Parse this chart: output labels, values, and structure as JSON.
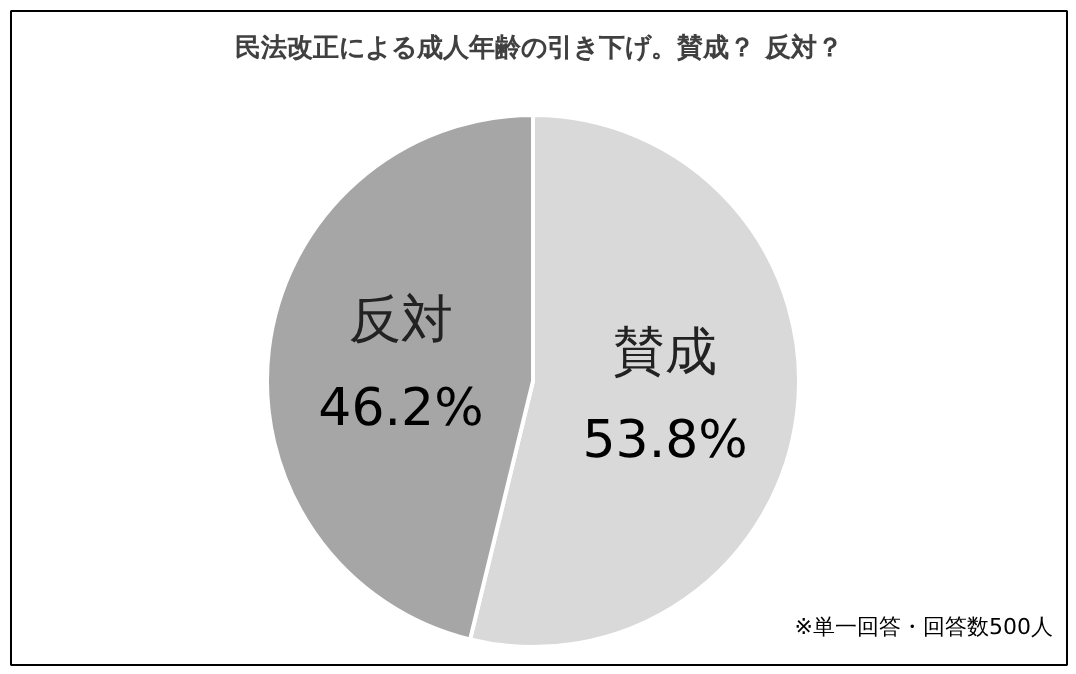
{
  "chart_data": {
    "type": "pie",
    "title": "民法改正による成人年齢の引き下げ。賛成？ 反対？",
    "categories": [
      "賛成",
      "反対"
    ],
    "values": [
      53.8,
      46.2
    ],
    "colors": [
      "#d9d9d9",
      "#a6a6a6"
    ],
    "value_labels": [
      "53.8%",
      "46.2%"
    ],
    "annotations": [
      "※単一回答・回答数500人"
    ]
  }
}
